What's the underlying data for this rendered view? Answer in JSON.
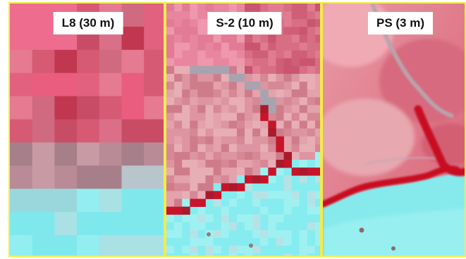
{
  "panels": [
    {
      "label": "L8 (30 m)"
    },
    {
      "label": "S-2 (10 m)"
    },
    {
      "label": "PS (3 m)"
    }
  ],
  "colors": {
    "border": "#f2ec4a",
    "vegetation": "#d8667f",
    "water_channel": "#c80f24",
    "bare_soil": "#82eef0"
  }
}
